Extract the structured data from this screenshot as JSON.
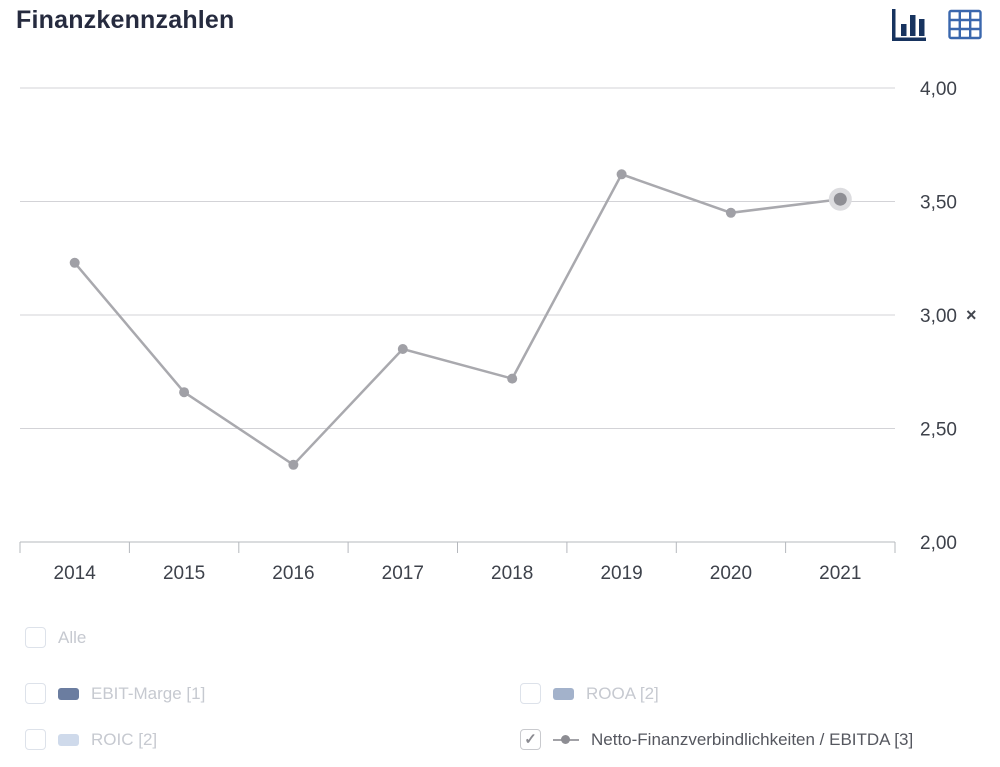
{
  "header": {
    "title": "Finanzkennzahlen",
    "view_toggle": {
      "chart_view_icon": "bar-chart",
      "table_view_icon": "table-grid",
      "chart_icon_color": "#17335f",
      "table_icon_color": "#3a67ad"
    }
  },
  "chart_data": {
    "type": "line",
    "title": "Finanzkennzahlen",
    "categories": [
      "2014",
      "2015",
      "2016",
      "2017",
      "2018",
      "2019",
      "2020",
      "2021"
    ],
    "series": [
      {
        "name": "Netto-Finanzverbindlichkeiten / EBITDA [3]",
        "values": [
          3.23,
          2.66,
          2.34,
          2.85,
          2.72,
          3.62,
          3.45,
          3.51
        ]
      }
    ],
    "ylim": [
      2.0,
      4.0
    ],
    "y_axis_side": "right",
    "grid": true,
    "legend_position": "bottom",
    "y_ticks": [
      {
        "value": 4.0,
        "label": "4,00"
      },
      {
        "value": 3.5,
        "label": "3,50"
      },
      {
        "value": 3.0,
        "label": "3,00",
        "close_icon": true
      },
      {
        "value": 2.5,
        "label": "2,50"
      },
      {
        "value": 2.0,
        "label": "2,00"
      }
    ],
    "close_glyph": "×",
    "highlight_last_point": true,
    "colors": {
      "line": "#a9a9ae",
      "dot": "#a0a0a6",
      "grid": "#d3d3d7",
      "axis": "#b5b8bd",
      "tick_text": "#3e424b",
      "highlight_halo": "#dcdcdf",
      "highlight_dot": "#8e8e94"
    }
  },
  "legend": {
    "check_glyph": "✓",
    "alle": {
      "label": "Alle",
      "checked": false
    },
    "items": [
      {
        "label": "EBIT-Marge [1]",
        "checked": false,
        "swatch": "#6b7da0"
      },
      {
        "label": "ROOA [2]",
        "checked": false,
        "swatch": "#a3b2cb"
      },
      {
        "label": "ROIC [2]",
        "checked": false,
        "swatch": "#cfdaeb"
      },
      {
        "label": "Netto-Finanzverbindlichkeiten / EBITDA [3]",
        "checked": true,
        "swatch": "#8d8d93",
        "marker": "line-dot"
      }
    ]
  }
}
